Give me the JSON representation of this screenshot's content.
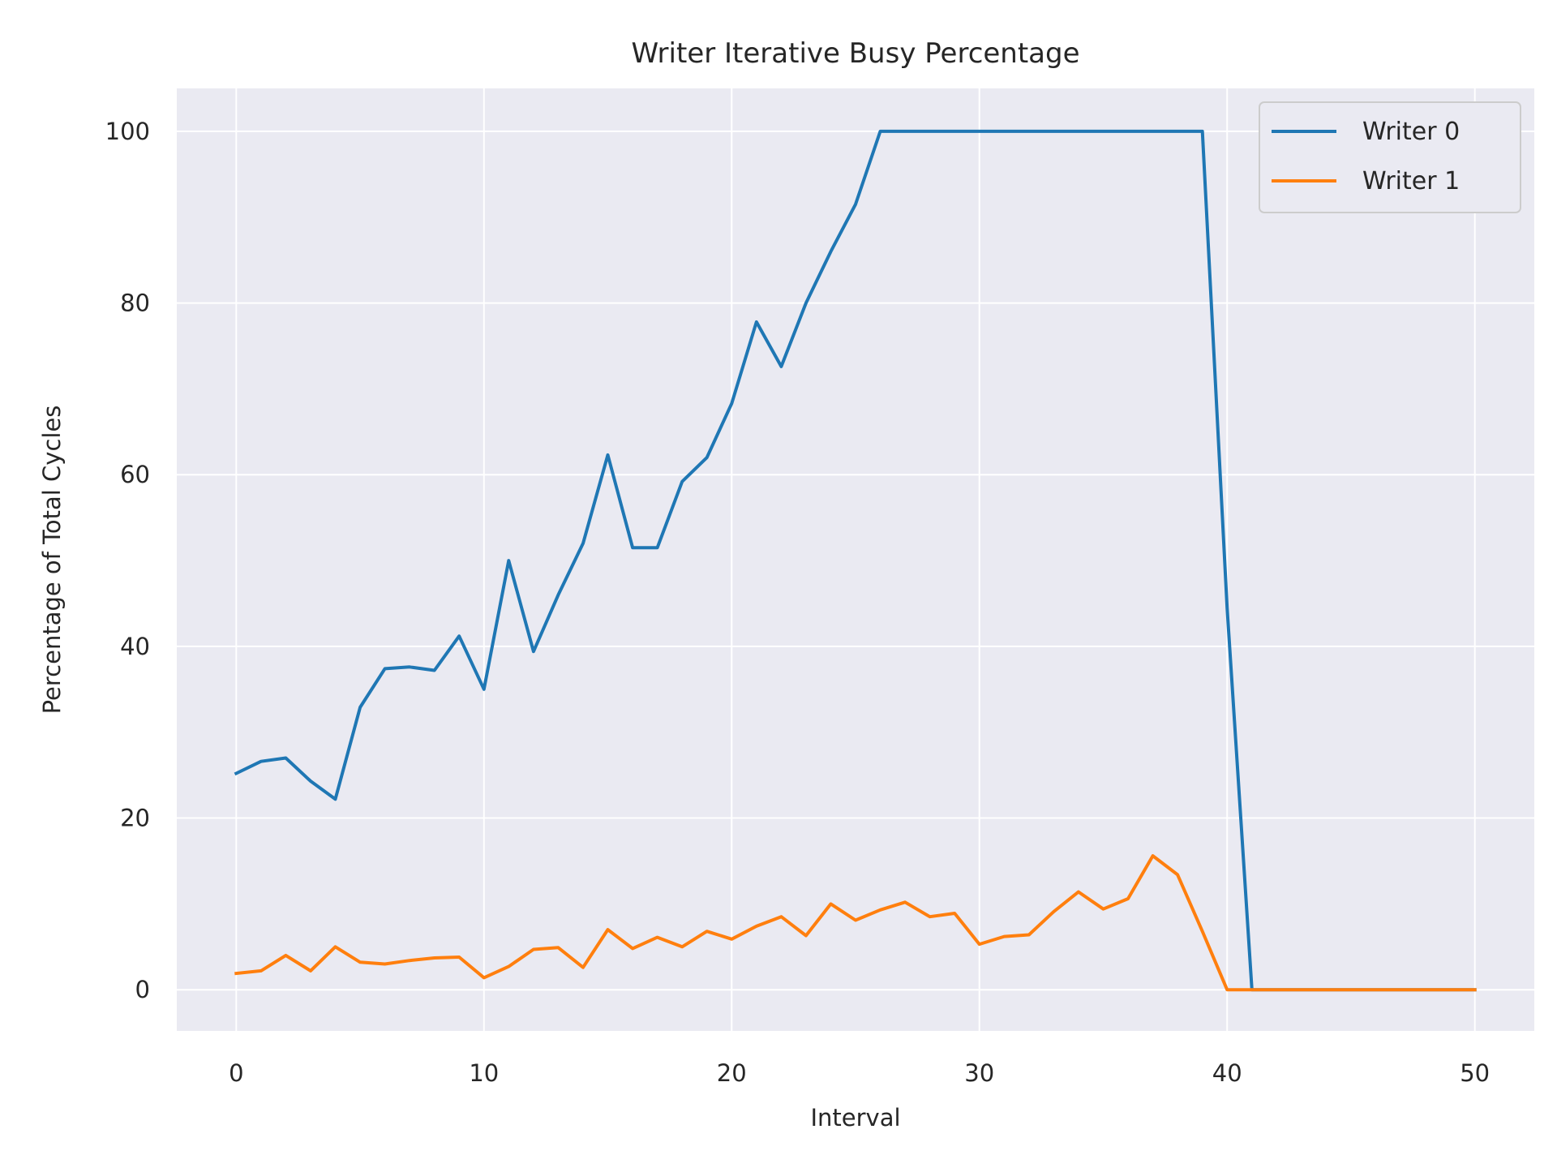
{
  "chart_data": {
    "type": "line",
    "title": "Writer Iterative Busy Percentage",
    "xlabel": "Interval",
    "ylabel": "Percentage of Total Cycles",
    "xlim": [
      -2.4,
      52.4
    ],
    "ylim": [
      -4.8,
      105
    ],
    "xticks": [
      0,
      10,
      20,
      30,
      40,
      50
    ],
    "yticks": [
      0,
      20,
      40,
      60,
      80,
      100
    ],
    "grid": true,
    "legend_position": "top-right",
    "x": [
      0,
      1,
      2,
      3,
      4,
      5,
      6,
      7,
      8,
      9,
      10,
      11,
      12,
      13,
      14,
      15,
      16,
      17,
      18,
      19,
      20,
      21,
      22,
      23,
      24,
      25,
      26,
      27,
      28,
      29,
      30,
      31,
      32,
      33,
      34,
      35,
      36,
      37,
      38,
      39,
      40,
      41,
      42,
      43,
      44,
      45,
      46,
      47,
      48,
      49,
      50
    ],
    "series": [
      {
        "name": "Writer 0",
        "color": "#1f77b4",
        "values": [
          25.2,
          26.6,
          27.0,
          24.3,
          22.2,
          32.9,
          37.4,
          37.6,
          37.2,
          41.2,
          35.0,
          50.0,
          39.4,
          46.0,
          52.0,
          62.3,
          51.5,
          51.5,
          59.2,
          62.0,
          68.3,
          77.8,
          72.6,
          80.0,
          86.0,
          91.5,
          100,
          100,
          100,
          100,
          100,
          100,
          100,
          100,
          100,
          100,
          100,
          100,
          100,
          100,
          44.5,
          0,
          0,
          0,
          0,
          0,
          0,
          0,
          0,
          0,
          0
        ]
      },
      {
        "name": "Writer 1",
        "color": "#ff7f0e",
        "values": [
          1.9,
          2.2,
          4.0,
          2.2,
          5.0,
          3.2,
          3.0,
          3.4,
          3.7,
          3.8,
          1.4,
          2.7,
          4.7,
          4.9,
          2.6,
          7.0,
          4.8,
          6.1,
          5.0,
          6.8,
          5.9,
          7.4,
          8.5,
          6.3,
          10.0,
          8.1,
          9.3,
          10.2,
          8.5,
          8.9,
          5.3,
          6.2,
          6.4,
          9.1,
          11.4,
          9.4,
          10.6,
          15.6,
          13.4,
          6.8,
          0,
          0,
          0,
          0,
          0,
          0,
          0,
          0,
          0,
          0,
          0
        ]
      }
    ]
  }
}
